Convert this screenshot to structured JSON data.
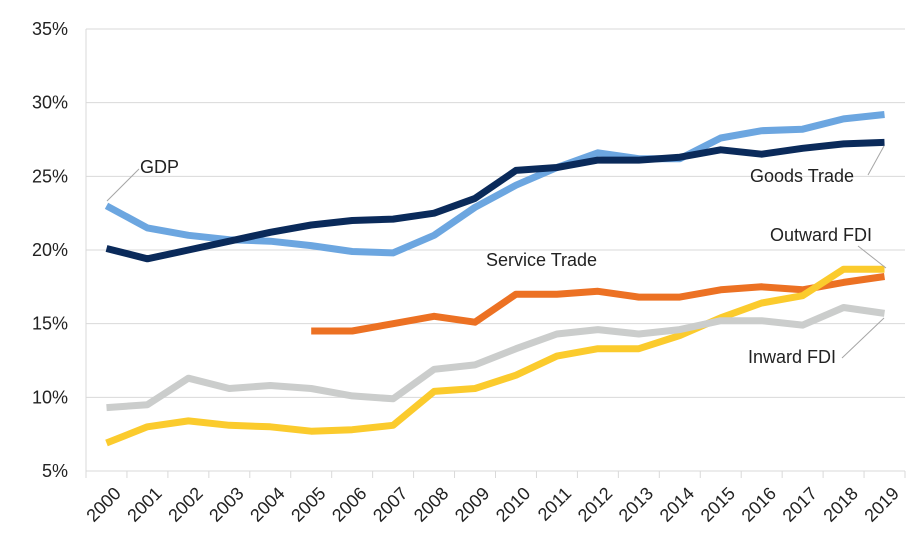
{
  "chart_data": {
    "type": "line",
    "title": "",
    "xlabel": "",
    "ylabel": "",
    "categories": [
      "2000",
      "2001",
      "2002",
      "2003",
      "2004",
      "2005",
      "2006",
      "2007",
      "2008",
      "2009",
      "2010",
      "2011",
      "2012",
      "2013",
      "2014",
      "2015",
      "2016",
      "2017",
      "2018",
      "2019"
    ],
    "ylim": [
      5,
      35
    ],
    "yticks": [
      5,
      10,
      15,
      20,
      25,
      30,
      35
    ],
    "ytick_labels": [
      "5%",
      "10%",
      "15%",
      "20%",
      "25%",
      "30%",
      "35%"
    ],
    "grid": "horizontal",
    "legend": "none (direct annotations)",
    "series": [
      {
        "name": "GDP",
        "color": "#6CA6E0",
        "values": [
          23.0,
          21.5,
          21.0,
          20.7,
          20.6,
          20.3,
          19.9,
          19.8,
          21.0,
          22.9,
          24.4,
          25.6,
          26.6,
          26.2,
          26.2,
          27.6,
          28.1,
          28.2,
          28.9,
          29.2
        ]
      },
      {
        "name": "Goods Trade",
        "color": "#0A2A5A",
        "values": [
          20.1,
          19.4,
          20.0,
          20.6,
          21.2,
          21.7,
          22.0,
          22.1,
          22.5,
          23.5,
          25.4,
          25.6,
          26.1,
          26.1,
          26.3,
          26.8,
          26.5,
          26.9,
          27.2,
          27.3
        ]
      },
      {
        "name": "Service Trade",
        "color": "#EC7123",
        "values": [
          null,
          null,
          null,
          null,
          null,
          14.5,
          14.5,
          15.0,
          15.5,
          15.1,
          17.0,
          17.0,
          17.2,
          16.8,
          16.8,
          17.3,
          17.5,
          17.3,
          17.8,
          18.2
        ]
      },
      {
        "name": "Outward FDI",
        "color": "#FBCB2D",
        "values": [
          6.9,
          8.0,
          8.4,
          8.1,
          8.0,
          7.7,
          7.8,
          8.1,
          10.4,
          10.6,
          11.5,
          12.8,
          13.3,
          13.3,
          14.2,
          15.4,
          16.4,
          16.9,
          18.7,
          18.7
        ]
      },
      {
        "name": "Inward FDI",
        "color": "#CBCDCC",
        "values": [
          9.3,
          9.5,
          11.3,
          10.6,
          10.8,
          10.6,
          10.1,
          9.9,
          11.9,
          12.2,
          13.3,
          14.3,
          14.6,
          14.3,
          14.6,
          15.2,
          15.2,
          14.9,
          16.1,
          15.7
        ]
      }
    ],
    "annotations": [
      {
        "text": "GDP",
        "series": "GDP"
      },
      {
        "text": "Goods Trade",
        "series": "Goods Trade"
      },
      {
        "text": "Outward FDI",
        "series": "Outward FDI"
      },
      {
        "text": "Service Trade",
        "series": "Service Trade"
      },
      {
        "text": "Inward FDI",
        "series": "Inward FDI"
      }
    ]
  }
}
